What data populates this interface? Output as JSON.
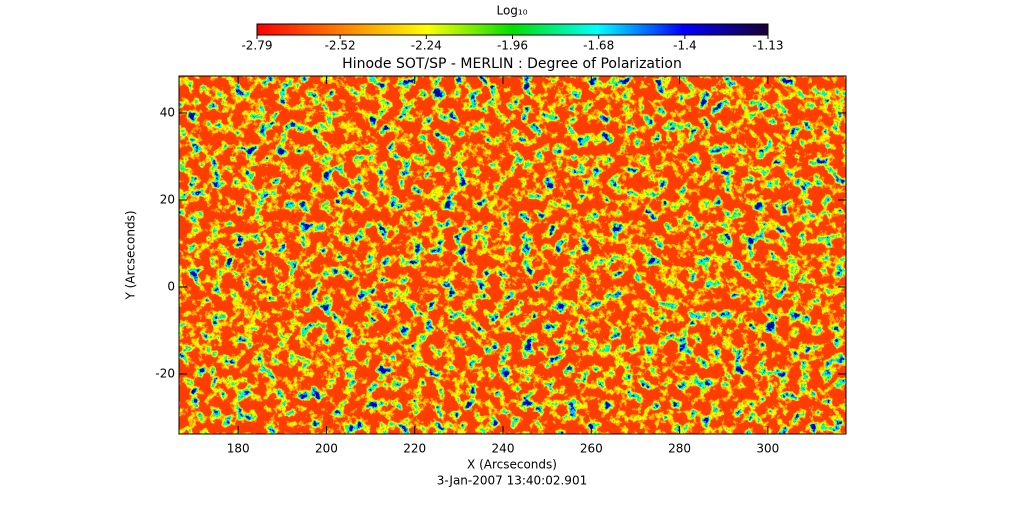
{
  "chart_data": {
    "type": "heatmap",
    "title": "Hinode SOT/SP - MERLIN : Degree of Polarization",
    "x_label": "X (Arcseconds)",
    "y_label": "Y (Arcseconds)",
    "footer": "3-Jan-2007 13:40:02.901",
    "xlim": [
      166.6,
      317.7
    ],
    "xticks": [
      180,
      200,
      220,
      240,
      260,
      280,
      300
    ],
    "ylim": [
      -33.8,
      48.5
    ],
    "yticks": [
      -20,
      0,
      20,
      40
    ],
    "colorbar": {
      "label": "Log₁₀",
      "lim": [
        -2.79,
        -1.13
      ],
      "ticks": [
        -2.79,
        -2.52,
        -2.24,
        -1.96,
        -1.68,
        -1.4,
        -1.13
      ],
      "colors": [
        "#ff0000",
        "#ff8000",
        "#ffff00",
        "#00e000",
        "#00ffff",
        "#0000ff",
        "#1a0033"
      ]
    }
  }
}
